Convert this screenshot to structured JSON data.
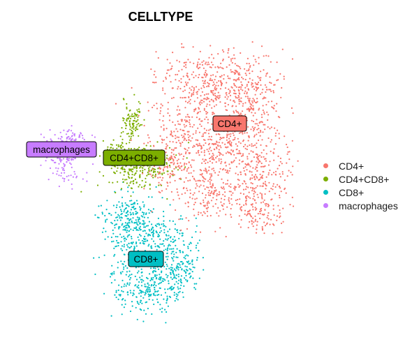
{
  "chart_data": {
    "type": "scatter",
    "title": "CELLTYPE",
    "xlabel": "",
    "ylabel": "",
    "grid": false,
    "legend_position": "right",
    "series": [
      {
        "name": "CD4+",
        "color": "#F8766D",
        "cluster_label": "CD4+"
      },
      {
        "name": "CD4+CD8+",
        "color": "#7CAE00",
        "cluster_label": "CD4+CD8+"
      },
      {
        "name": "CD8+",
        "color": "#00BFC4",
        "cluster_label": "CD8+"
      },
      {
        "name": "macrophages",
        "color": "#C77CFF",
        "cluster_label": "macrophages"
      }
    ]
  }
}
